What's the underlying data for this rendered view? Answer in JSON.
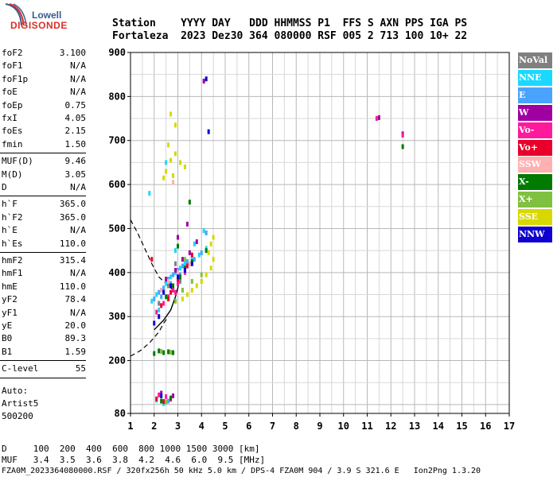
{
  "logo": {
    "top": "Lowell",
    "bottom": "DIGISONDE"
  },
  "header": {
    "line1": "Station    YYYY DAY   DDD HHMMSS P1  FFS S AXN PPS IGA PS",
    "line2": "Fortaleza  2023 Dez30 364 080000 RSF 005 2 713 100 10+ 22"
  },
  "params": [
    [
      {
        "label": "foF2",
        "value": "3.100"
      },
      {
        "label": "foF1",
        "value": "N/A"
      },
      {
        "label": "foF1p",
        "value": "N/A"
      },
      {
        "label": "foE",
        "value": "N/A"
      },
      {
        "label": "foEp",
        "value": "0.75"
      },
      {
        "label": "fxI",
        "value": "4.05"
      },
      {
        "label": "foEs",
        "value": "2.15"
      },
      {
        "label": "fmin",
        "value": "1.50"
      }
    ],
    [
      {
        "label": "MUF(D)",
        "value": "9.46"
      },
      {
        "label": "M(D)",
        "value": "3.05"
      },
      {
        "label": "D",
        "value": "N/A"
      }
    ],
    [
      {
        "label": "h`F",
        "value": "365.0"
      },
      {
        "label": "h`F2",
        "value": "365.0"
      },
      {
        "label": "h`E",
        "value": "N/A"
      },
      {
        "label": "h`Es",
        "value": "110.0"
      }
    ],
    [
      {
        "label": "hmF2",
        "value": "315.4"
      },
      {
        "label": "hmF1",
        "value": "N/A"
      },
      {
        "label": "hmE",
        "value": "110.0"
      },
      {
        "label": "yF2",
        "value": "78.4"
      },
      {
        "label": "yF1",
        "value": "N/A"
      },
      {
        "label": "yE",
        "value": "20.0"
      },
      {
        "label": "B0",
        "value": "89.3"
      },
      {
        "label": "B1",
        "value": "1.59"
      }
    ],
    [
      {
        "label": "C-level",
        "value": "55"
      }
    ]
  ],
  "auto": {
    "line1": "Auto:",
    "line2": "Artist5",
    "line3": "500200"
  },
  "legend": [
    {
      "label": "NoVal",
      "color": "#808080"
    },
    {
      "label": "NNE",
      "color": "#1ad8ff"
    },
    {
      "label": "E",
      "color": "#4aa3ff"
    },
    {
      "label": "W",
      "color": "#a000a0"
    },
    {
      "label": "Vo-",
      "color": "#ff1a9c"
    },
    {
      "label": "Vo+",
      "color": "#e8002a"
    },
    {
      "label": "SSW",
      "color": "#ffb0b0"
    },
    {
      "label": "X-",
      "color": "#007a00"
    },
    {
      "label": "X+",
      "color": "#80c040"
    },
    {
      "label": "SSE",
      "color": "#d8d800"
    },
    {
      "label": "NNW",
      "color": "#1000d0"
    }
  ],
  "footer": {
    "line1": "D     100  200  400  600  800 1000 1500 3000 [km]",
    "line2": "MUF   3.4  3.5  3.6  3.8  4.2  4.6  6.0  9.5 [MHz]",
    "line3": "FZA0M_2023364080000.RSF / 320fx256h 50 kHz 5.0 km / DPS-4 FZA0M 904 / 3.9 S 321.6 E   Ion2Png 1.3.20"
  },
  "chart_data": {
    "type": "scatter",
    "title": "",
    "xlabel": "",
    "ylabel": "",
    "xlim": [
      1,
      17
    ],
    "ylim": [
      80,
      900
    ],
    "xticks": [
      1,
      2,
      3,
      4,
      5,
      6,
      7,
      8,
      9,
      10,
      11,
      12,
      13,
      14,
      15,
      16,
      17
    ],
    "yticks": [
      80,
      200,
      300,
      400,
      500,
      600,
      700,
      800,
      900
    ],
    "grid": true,
    "series": [
      {
        "name": "NoVal",
        "points": [
          [
            2.6,
            370
          ],
          [
            2.9,
            420
          ],
          [
            3.1,
            380
          ],
          [
            2.2,
            330
          ],
          [
            3.3,
            405
          ],
          [
            2.8,
            395
          ]
        ]
      },
      {
        "name": "NNE",
        "points": [
          [
            1.9,
            335
          ],
          [
            2.1,
            350
          ],
          [
            2.3,
            360
          ],
          [
            2.5,
            375
          ],
          [
            2.7,
            390
          ],
          [
            2.9,
            400
          ],
          [
            3.1,
            410
          ],
          [
            3.3,
            420
          ],
          [
            3.6,
            430
          ],
          [
            3.9,
            440
          ],
          [
            4.2,
            455
          ],
          [
            2.2,
            315
          ],
          [
            1.8,
            580
          ],
          [
            2.5,
            650
          ],
          [
            3.2,
            360
          ],
          [
            2.9,
            450
          ],
          [
            4.1,
            495
          ],
          [
            3.7,
            465
          ],
          [
            2.1,
            110
          ],
          [
            2.4,
            102
          ]
        ]
      },
      {
        "name": "E",
        "points": [
          [
            2.0,
            340
          ],
          [
            2.2,
            355
          ],
          [
            2.4,
            365
          ],
          [
            2.6,
            385
          ],
          [
            2.8,
            395
          ],
          [
            3.0,
            405
          ],
          [
            3.2,
            415
          ],
          [
            3.4,
            425
          ],
          [
            3.7,
            430
          ],
          [
            4.0,
            445
          ],
          [
            2.3,
            345
          ],
          [
            2.7,
            375
          ],
          [
            3.1,
            395
          ],
          [
            4.2,
            490
          ],
          [
            2.6,
            108
          ]
        ]
      },
      {
        "name": "W",
        "points": [
          [
            2.5,
            385
          ],
          [
            2.9,
            405
          ],
          [
            3.2,
            430
          ],
          [
            3.5,
            445
          ],
          [
            3.8,
            470
          ],
          [
            4.1,
            835
          ],
          [
            2.8,
            120
          ],
          [
            2.3,
            126
          ],
          [
            3.0,
            480
          ],
          [
            3.4,
            510
          ],
          [
            11.5,
            752
          ],
          [
            12.5,
            715
          ]
        ]
      },
      {
        "name": "Vo-",
        "points": [
          [
            2.1,
            310
          ],
          [
            2.4,
            330
          ],
          [
            2.6,
            345
          ],
          [
            2.8,
            360
          ],
          [
            3.0,
            375
          ],
          [
            2.2,
            122
          ],
          [
            2.5,
            118
          ],
          [
            2.7,
            112
          ],
          [
            3.3,
            400
          ],
          [
            2.9,
            355
          ],
          [
            11.4,
            750
          ],
          [
            12.5,
            712
          ]
        ]
      },
      {
        "name": "Vo+",
        "points": [
          [
            2.3,
            325
          ],
          [
            2.7,
            355
          ],
          [
            3.0,
            385
          ],
          [
            3.4,
            415
          ],
          [
            1.9,
            430
          ],
          [
            2.1,
            113
          ],
          [
            2.4,
            107
          ],
          [
            3.6,
            440
          ],
          [
            2.6,
            340
          ]
        ]
      },
      {
        "name": "SSW",
        "points": [
          [
            2.3,
            360
          ],
          [
            2.6,
            380
          ],
          [
            3.0,
            400
          ],
          [
            3.5,
            420
          ],
          [
            2.8,
            605
          ]
        ]
      },
      {
        "name": "X-",
        "points": [
          [
            2.2,
            222
          ],
          [
            2.4,
            218
          ],
          [
            2.6,
            220
          ],
          [
            2.8,
            218
          ],
          [
            2.0,
            216
          ],
          [
            2.5,
            345
          ],
          [
            2.8,
            370
          ],
          [
            3.1,
            390
          ],
          [
            3.3,
            410
          ],
          [
            3.6,
            425
          ],
          [
            4.2,
            450
          ],
          [
            2.7,
            115
          ],
          [
            2.3,
            108
          ],
          [
            3.5,
            560
          ],
          [
            12.5,
            686
          ],
          [
            3.0,
            460
          ]
        ]
      },
      {
        "name": "X+",
        "points": [
          [
            2.3,
            221
          ],
          [
            2.7,
            219
          ],
          [
            2.9,
            335
          ],
          [
            3.2,
            360
          ],
          [
            3.6,
            380
          ],
          [
            4.0,
            395
          ],
          [
            3.3,
            430
          ],
          [
            2.5,
            106
          ]
        ]
      },
      {
        "name": "SSE",
        "points": [
          [
            3.2,
            340
          ],
          [
            3.4,
            350
          ],
          [
            3.6,
            360
          ],
          [
            3.8,
            370
          ],
          [
            4.0,
            380
          ],
          [
            4.2,
            395
          ],
          [
            4.4,
            410
          ],
          [
            4.5,
            430
          ],
          [
            4.3,
            445
          ],
          [
            4.4,
            465
          ],
          [
            4.5,
            480
          ],
          [
            2.5,
            630
          ],
          [
            2.7,
            655
          ],
          [
            2.9,
            670
          ],
          [
            2.6,
            690
          ],
          [
            2.8,
            620
          ],
          [
            3.1,
            650
          ],
          [
            2.4,
            615
          ],
          [
            3.3,
            640
          ],
          [
            2.9,
            735
          ],
          [
            2.7,
            760
          ],
          [
            4.0,
            380
          ]
        ]
      },
      {
        "name": "NNW",
        "points": [
          [
            2.4,
            355
          ],
          [
            2.7,
            370
          ],
          [
            3.0,
            390
          ],
          [
            3.3,
            405
          ],
          [
            3.6,
            420
          ],
          [
            4.2,
            840
          ],
          [
            4.3,
            720
          ],
          [
            2.3,
            120
          ],
          [
            2.0,
            285
          ],
          [
            2.2,
            300
          ]
        ]
      }
    ],
    "profile_curve": [
      [
        2.0,
        270
      ],
      [
        2.4,
        292
      ],
      [
        2.7,
        315
      ],
      [
        2.9,
        345
      ],
      [
        3.0,
        365
      ],
      [
        3.05,
        385
      ]
    ],
    "extrapolated_curves": [
      [
        [
          1.0,
          210
        ],
        [
          1.4,
          222
        ],
        [
          1.8,
          240
        ],
        [
          2.2,
          265
        ],
        [
          2.4,
          285
        ],
        [
          2.6,
          300
        ]
      ],
      [
        [
          1.0,
          520
        ],
        [
          1.3,
          490
        ],
        [
          1.6,
          455
        ],
        [
          1.9,
          420
        ],
        [
          2.2,
          390
        ],
        [
          2.5,
          375
        ],
        [
          2.8,
          360
        ]
      ]
    ]
  }
}
